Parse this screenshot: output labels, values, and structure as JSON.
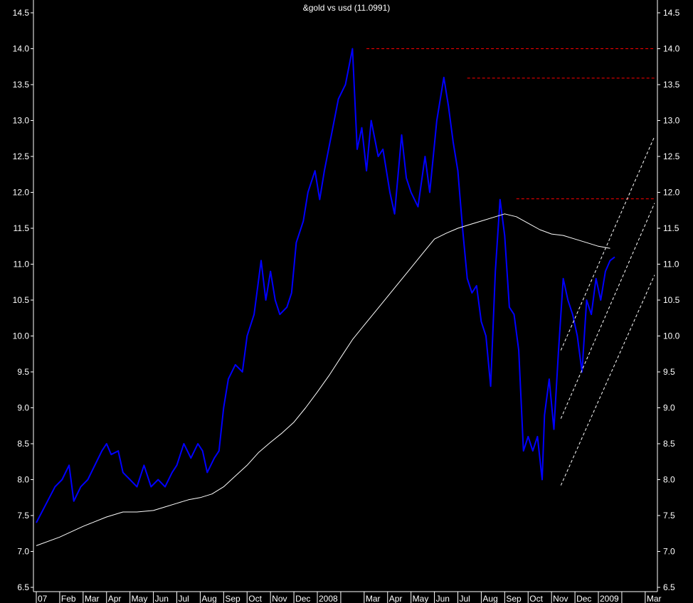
{
  "chart_data": {
    "type": "line",
    "title": "&gold vs usd (11.0991)",
    "y_axis": {
      "ylim": [
        6.5,
        14.5
      ],
      "ticks": [
        "6.5",
        "7.0",
        "7.5",
        "8.0",
        "8.5",
        "9.0",
        "9.5",
        "10.0",
        "10.5",
        "11.0",
        "11.5",
        "12.0",
        "12.5",
        "13.0",
        "13.5",
        "14.0",
        "14.5"
      ],
      "sides": "left-and-right"
    },
    "x_axis": {
      "labels": [
        "07",
        "Feb",
        "Mar",
        "Apr",
        "May",
        "Jun",
        "Jul",
        "Aug",
        "Sep",
        "Oct",
        "Nov",
        "Dec",
        "2008",
        "Mar",
        "Apr",
        "May",
        "Jun",
        "Jul",
        "Aug",
        "Sep",
        "Oct",
        "Nov",
        "Dec",
        "2009",
        "Mar"
      ],
      "label_month_index": [
        0,
        1,
        2,
        3,
        4,
        5,
        6,
        7,
        8,
        9,
        10,
        11,
        12,
        14,
        15,
        16,
        17,
        18,
        19,
        20,
        21,
        22,
        23,
        24,
        26
      ],
      "month_zero": "2007-01",
      "xlim_month_index": [
        0,
        26.4
      ]
    },
    "grid": false,
    "background": "#000000",
    "series": [
      {
        "color": "#0000ff",
        "style": "solid",
        "x_month_index": [
          0,
          0.4,
          0.8,
          1.1,
          1.4,
          1.6,
          1.9,
          2.2,
          2.5,
          2.8,
          3.0,
          3.2,
          3.5,
          3.7,
          4.0,
          4.3,
          4.6,
          4.9,
          5.2,
          5.5,
          5.8,
          6.0,
          6.3,
          6.6,
          6.9,
          7.1,
          7.3,
          7.6,
          7.8,
          8.0,
          8.2,
          8.5,
          8.8,
          9.0,
          9.3,
          9.6,
          9.8,
          10.0,
          10.2,
          10.4,
          10.7,
          10.9,
          11.1,
          11.4,
          11.6,
          11.9,
          12.1,
          12.3,
          12.6,
          12.9,
          13.2,
          13.5,
          13.7,
          13.9,
          14.1,
          14.3,
          14.6,
          14.8,
          15.1,
          15.3,
          15.6,
          15.8,
          16.0,
          16.3,
          16.6,
          16.8,
          17.1,
          17.4,
          17.6,
          17.8,
          18.0,
          18.2,
          18.4,
          18.6,
          18.8,
          19.0,
          19.2,
          19.4,
          19.6,
          19.8,
          20.0,
          20.1,
          20.2,
          20.4,
          20.6,
          20.8,
          21.0,
          21.2,
          21.4,
          21.6,
          21.7,
          21.9,
          22.1,
          22.3,
          22.5,
          22.7,
          22.9,
          23.1,
          23.3,
          23.5,
          23.7,
          23.9,
          24.1,
          24.3,
          24.5,
          24.7
        ],
        "values": [
          7.4,
          7.65,
          7.9,
          8.0,
          8.2,
          7.7,
          7.9,
          8.0,
          8.2,
          8.4,
          8.5,
          8.35,
          8.4,
          8.1,
          8.0,
          7.9,
          8.2,
          7.9,
          8.0,
          7.9,
          8.1,
          8.2,
          8.5,
          8.3,
          8.5,
          8.4,
          8.1,
          8.3,
          8.4,
          9.0,
          9.4,
          9.6,
          9.5,
          10.0,
          10.3,
          11.05,
          10.5,
          10.9,
          10.5,
          10.3,
          10.4,
          10.6,
          11.3,
          11.6,
          12.0,
          12.3,
          11.9,
          12.3,
          12.8,
          13.3,
          13.5,
          14.0,
          12.6,
          12.9,
          12.3,
          13.0,
          12.5,
          12.6,
          12.0,
          11.7,
          12.8,
          12.2,
          12.0,
          11.8,
          12.5,
          12.0,
          13.0,
          13.6,
          13.2,
          12.7,
          12.3,
          11.5,
          10.8,
          10.6,
          10.7,
          10.2,
          10.0,
          9.3,
          10.9,
          11.9,
          11.4,
          10.9,
          10.4,
          10.3,
          9.8,
          8.4,
          8.6,
          8.4,
          8.6,
          8.0,
          8.9,
          9.4,
          8.7,
          9.8,
          10.8,
          10.5,
          10.3,
          10.0,
          9.5,
          10.5,
          10.3,
          10.8,
          10.5,
          10.9,
          11.05,
          11.1
        ]
      },
      {
        "color": "#ffffff",
        "style": "solid",
        "x_month_index": [
          0,
          1,
          2,
          3,
          3.7,
          4.3,
          5,
          5.5,
          6,
          6.5,
          7,
          7.5,
          8,
          8.5,
          9,
          9.5,
          10,
          10.5,
          11,
          11.5,
          12,
          12.5,
          13,
          13.5,
          14,
          14.5,
          15,
          15.5,
          16,
          16.5,
          17,
          17.5,
          18,
          18.5,
          19,
          19.5,
          20,
          20.5,
          21,
          21.5,
          22,
          22.5,
          23,
          23.5,
          24,
          24.5
        ],
        "values": [
          7.08,
          7.2,
          7.35,
          7.48,
          7.55,
          7.55,
          7.57,
          7.62,
          7.67,
          7.72,
          7.75,
          7.8,
          7.9,
          8.05,
          8.2,
          8.38,
          8.52,
          8.65,
          8.8,
          9.0,
          9.22,
          9.45,
          9.7,
          9.95,
          10.15,
          10.35,
          10.55,
          10.75,
          10.95,
          11.15,
          11.35,
          11.43,
          11.5,
          11.55,
          11.6,
          11.65,
          11.7,
          11.66,
          11.57,
          11.48,
          11.42,
          11.4,
          11.35,
          11.3,
          11.25,
          11.22
        ]
      },
      {
        "color": "#ff0000",
        "style": "dashed",
        "x_month_index": [
          14.1,
          26.4
        ],
        "values": [
          14.0,
          14.0
        ]
      },
      {
        "color": "#ff0000",
        "style": "dashed",
        "x_month_index": [
          18.4,
          26.4
        ],
        "values": [
          13.59,
          13.59
        ]
      },
      {
        "color": "#ff0000",
        "style": "dashed",
        "x_month_index": [
          20.5,
          26.4
        ],
        "values": [
          11.91,
          11.91
        ]
      },
      {
        "color": "#ffffff",
        "style": "dashed",
        "x_month_index": [
          22.4,
          26.4
        ],
        "values": [
          9.8,
          12.78
        ]
      },
      {
        "color": "#ffffff",
        "style": "dashed",
        "x_month_index": [
          22.4,
          26.4
        ],
        "values": [
          8.85,
          11.85
        ]
      },
      {
        "color": "#ffffff",
        "style": "dashed",
        "x_month_index": [
          22.4,
          26.4
        ],
        "values": [
          7.92,
          10.85
        ]
      }
    ]
  }
}
